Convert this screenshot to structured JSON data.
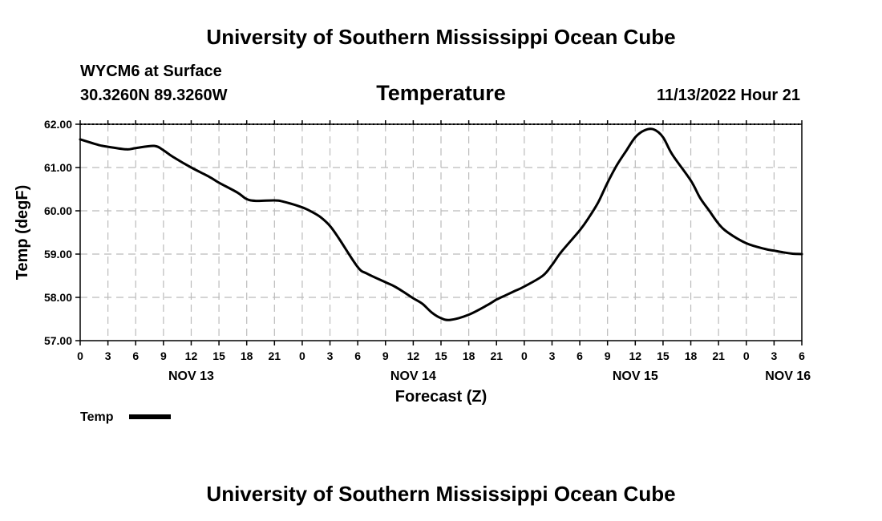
{
  "header": {
    "title_top": "University of Southern Mississippi Ocean Cube",
    "station": "WYCM6 at Surface",
    "coords": "30.3260N  89.3260W",
    "parameter": "Temperature",
    "timestamp": "11/13/2022 Hour 21",
    "title_bottom": "University of Southern Mississippi Ocean Cube"
  },
  "legend": {
    "label": "Temp",
    "line_color": "#000000"
  },
  "chart_data": {
    "type": "line",
    "xlabel": "Forecast (Z)",
    "ylabel": "Temp (degF)",
    "ylim": [
      57.0,
      62.0
    ],
    "xlim_hours": [
      0,
      78
    ],
    "y_ticks": [
      "57.00",
      "58.00",
      "59.00",
      "60.00",
      "61.00",
      "62.00"
    ],
    "x_ticks": [
      "0",
      "3",
      "6",
      "9",
      "12",
      "15",
      "18",
      "21",
      "0",
      "3",
      "6",
      "9",
      "12",
      "15",
      "18",
      "21",
      "0",
      "3",
      "6",
      "9",
      "12",
      "15",
      "18",
      "21",
      "0",
      "3",
      "6"
    ],
    "date_labels": [
      {
        "label": "NOV 13",
        "hour": 12
      },
      {
        "label": "NOV 14",
        "hour": 36
      },
      {
        "label": "NOV 15",
        "hour": 60
      },
      {
        "label": "NOV 16",
        "hour": 76.5
      }
    ],
    "grid": true,
    "series": [
      {
        "name": "Temp",
        "x_hours": [
          0,
          2,
          3,
          5,
          6,
          8,
          9,
          10,
          12,
          14,
          15,
          17,
          18,
          19,
          21,
          22,
          24,
          25,
          26,
          27,
          28,
          30,
          31,
          33,
          34,
          35,
          36,
          37,
          38,
          39,
          40,
          42,
          44,
          45,
          46,
          47,
          48,
          50,
          51,
          52,
          54,
          55,
          56,
          57,
          58,
          59,
          60,
          61,
          62,
          63,
          64,
          66,
          67,
          68,
          69,
          70,
          72,
          74,
          75,
          76,
          77,
          78
        ],
        "values": [
          61.65,
          61.52,
          61.48,
          61.42,
          61.45,
          61.5,
          61.4,
          61.25,
          61.0,
          60.78,
          60.65,
          60.42,
          60.27,
          60.23,
          60.24,
          60.21,
          60.08,
          59.98,
          59.85,
          59.65,
          59.35,
          58.7,
          58.55,
          58.35,
          58.25,
          58.12,
          57.98,
          57.85,
          57.65,
          57.52,
          57.48,
          57.6,
          57.82,
          57.95,
          58.05,
          58.15,
          58.25,
          58.5,
          58.75,
          59.05,
          59.55,
          59.85,
          60.2,
          60.65,
          61.05,
          61.38,
          61.7,
          61.86,
          61.88,
          61.7,
          61.3,
          60.7,
          60.3,
          60.0,
          59.7,
          59.5,
          59.25,
          59.12,
          59.08,
          59.04,
          59.01,
          59.0
        ]
      }
    ]
  }
}
